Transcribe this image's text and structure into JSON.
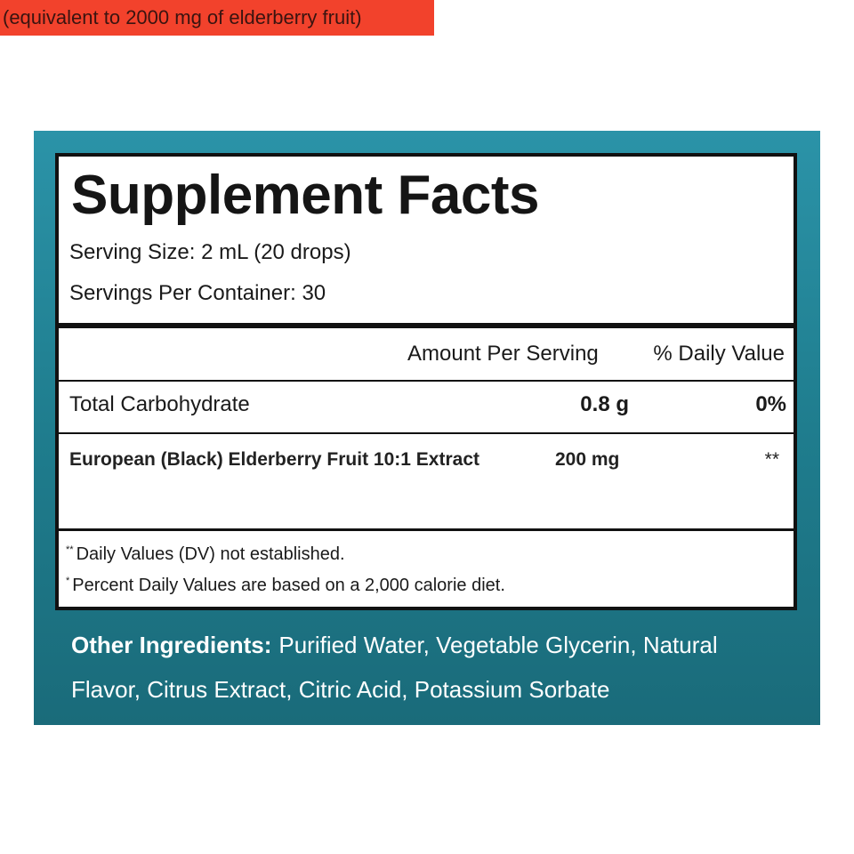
{
  "title": "Supplement Facts",
  "serving_size": "Serving Size: 2 mL (20 drops)",
  "servings_per_container": "Servings Per Container: 30",
  "table": {
    "header": [
      "Amount Per Serving",
      "% Daily Value"
    ],
    "rows": [
      [
        "Total Carbohydrate",
        "0.8 g",
        "0%"
      ],
      [
        "European (Black) Elderberry Fruit 10:1 Extract",
        "200 mg",
        "**"
      ]
    ],
    "highlight_note": "(equivalent to 2000 mg of elderberry fruit)"
  },
  "footnotes": [
    {
      "mark": "**",
      "text": "Daily Values (DV) not established."
    },
    {
      "mark": "*",
      "text": "Percent Daily Values are based on a 2,000 calorie diet."
    }
  ],
  "other_ingredients": {
    "label": "Other Ingredients:",
    "text": "Purified Water, Vegetable Glycerin, Natural Flavor, Citrus Extract, Citric Acid, Potassium Sorbate"
  }
}
